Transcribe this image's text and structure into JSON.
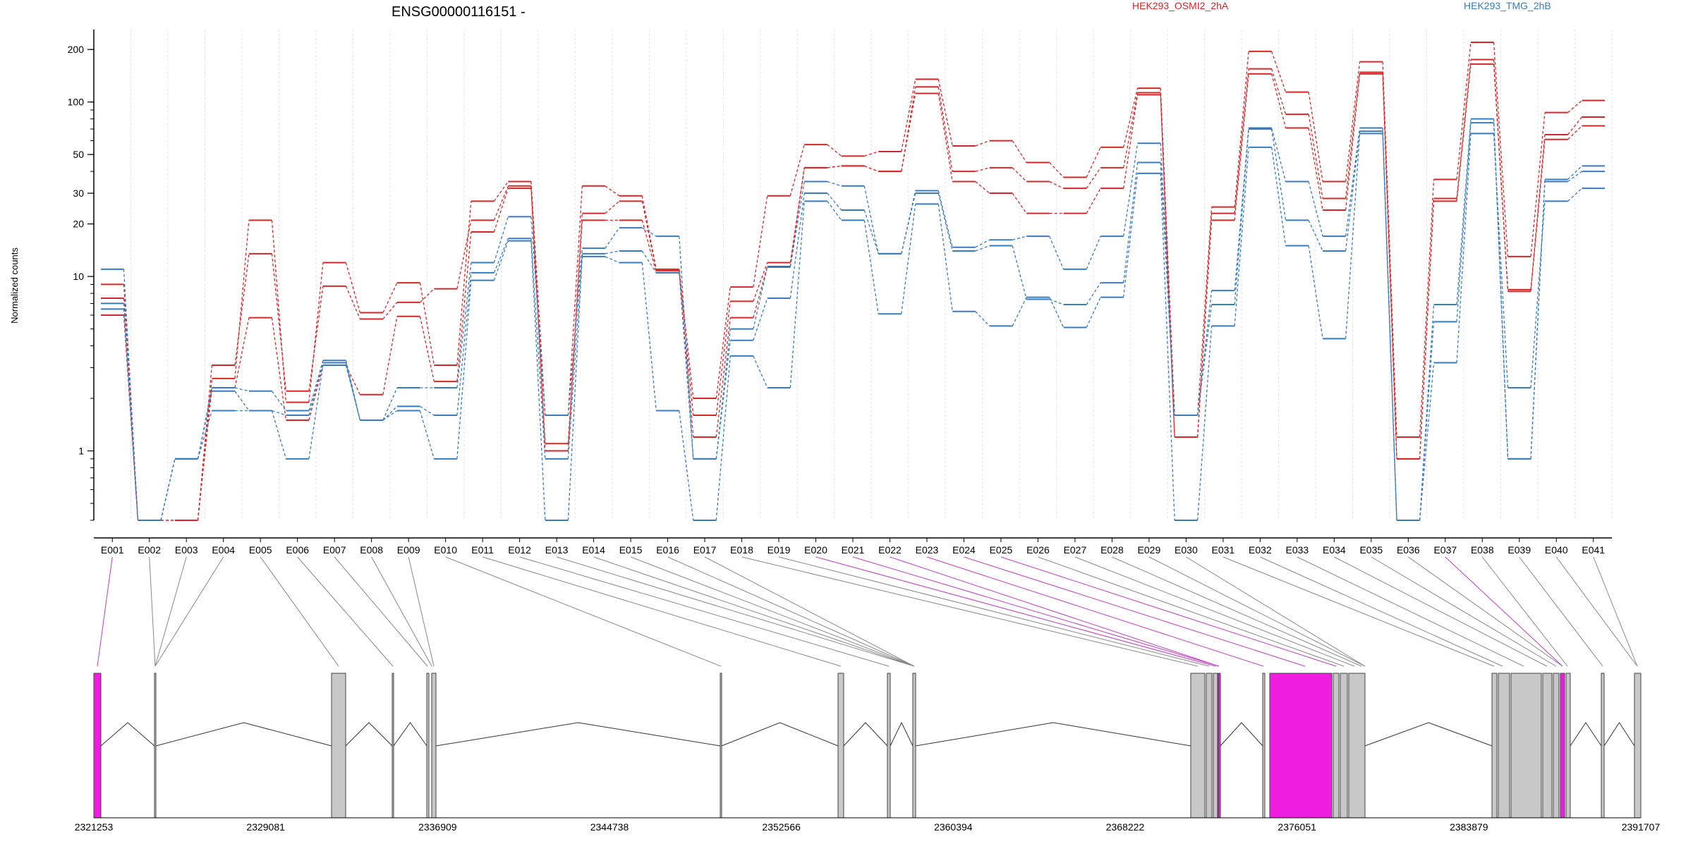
{
  "chart_data": {
    "type": "line",
    "title": "ENSG00000116151 -",
    "ylabel": "Normalized counts",
    "y_scale": "log",
    "ylim": [
      0.4,
      260
    ],
    "y_ticks": [
      1,
      10,
      20,
      30,
      50,
      100,
      200
    ],
    "grid": "vertical, light dashed",
    "legend": [
      {
        "name": "HEK293_OSMI2_2hA",
        "color": "#d62728"
      },
      {
        "name": "HEK293_TMG_2hB",
        "color": "#3a7bbf"
      }
    ],
    "categories": [
      "E001",
      "E002",
      "E003",
      "E004",
      "E005",
      "E006",
      "E007",
      "E008",
      "E009",
      "E010",
      "E011",
      "E012",
      "E013",
      "E014",
      "E015",
      "E016",
      "E017",
      "E018",
      "E019",
      "E020",
      "E021",
      "E022",
      "E023",
      "E024",
      "E025",
      "E026",
      "E027",
      "E028",
      "E029",
      "E030",
      "E031",
      "E032",
      "E033",
      "E034",
      "E035",
      "E036",
      "E037",
      "E038",
      "E039",
      "E040",
      "E041"
    ],
    "series": [
      {
        "name": "HEK293_OSMI2_2hA",
        "color": "#d62728",
        "values": [
          9,
          0.4,
          0.4,
          2.6,
          21,
          1.9,
          12,
          6.2,
          9.2,
          3.1,
          27,
          35,
          1.6,
          33,
          29,
          11,
          2,
          8.7,
          29,
          57,
          49,
          52,
          135,
          56,
          60,
          45,
          37,
          55,
          120,
          1.6,
          25,
          195,
          114,
          35,
          170,
          1.2,
          36,
          220,
          13,
          87,
          102
        ]
      },
      {
        "name": "HEK293_OSMI2_2hA",
        "color": "#d62728",
        "values": [
          7.5,
          0.4,
          0.4,
          3.1,
          13.5,
          2.2,
          8.8,
          5.7,
          7.1,
          8.5,
          21,
          33,
          1.1,
          23,
          27,
          10.8,
          1.6,
          7.2,
          12,
          42,
          43,
          40,
          122,
          40,
          42,
          35,
          32,
          42,
          113,
          1.2,
          23,
          155,
          85,
          28,
          148,
          0.9,
          28,
          175,
          8.4,
          65,
          82
        ]
      },
      {
        "name": "HEK293_OSMI2_2hA",
        "color": "#d62728",
        "values": [
          6,
          0.4,
          0.4,
          2.3,
          5.8,
          1.5,
          3.1,
          2.1,
          5.9,
          2.5,
          18,
          32,
          1,
          21,
          21,
          10.5,
          1.2,
          5.8,
          11.4,
          42,
          43,
          40,
          112,
          35,
          30,
          23,
          23,
          32,
          110,
          1.2,
          21,
          145,
          71,
          24,
          145,
          0.9,
          27,
          165,
          8.2,
          61,
          73
        ]
      },
      {
        "name": "HEK293_TMG_2hB",
        "color": "#3a7bbf",
        "values": [
          11,
          0.4,
          0.9,
          2.3,
          2.2,
          1.7,
          3.3,
          1.5,
          2.3,
          2.3,
          12,
          22,
          1.6,
          14.5,
          19,
          17,
          0.9,
          5,
          11.3,
          35,
          33,
          13.5,
          31,
          14.7,
          16.2,
          17,
          11,
          17,
          58,
          1.6,
          8.3,
          71,
          35,
          17,
          71,
          0.4,
          6.9,
          80,
          0.9,
          36,
          43
        ]
      },
      {
        "name": "HEK293_TMG_2hB",
        "color": "#3a7bbf",
        "values": [
          7,
          0.4,
          0.9,
          2.2,
          1.7,
          1.6,
          3.2,
          1.5,
          1.8,
          1.6,
          10.5,
          16.5,
          0.9,
          13.5,
          14,
          10.5,
          0.9,
          4.3,
          7.5,
          30,
          24,
          13.5,
          30,
          14,
          15,
          7.4,
          6.9,
          9.2,
          45,
          1.6,
          6.9,
          70,
          21,
          14,
          68,
          0.4,
          5.5,
          76,
          0.9,
          35,
          40
        ]
      },
      {
        "name": "HEK293_TMG_2hB",
        "color": "#3a7bbf",
        "values": [
          6.5,
          0.4,
          0.9,
          1.7,
          1.7,
          0.9,
          3.1,
          1.5,
          1.7,
          0.9,
          9.5,
          16,
          0.4,
          13,
          12,
          1.7,
          0.4,
          3.5,
          2.3,
          27,
          21,
          6.1,
          26,
          6.3,
          5.2,
          7.6,
          5.1,
          7.6,
          39,
          0.4,
          5.2,
          55,
          15,
          4.4,
          66,
          0.4,
          3.2,
          66,
          2.3,
          27,
          32
        ]
      }
    ]
  },
  "gene_model": {
    "coordinates": [
      "2321253",
      "2329081",
      "2336909",
      "2344738",
      "2352566",
      "2360394",
      "2368222",
      "2376051",
      "2383879",
      "2391707"
    ],
    "exon_fill": "#c8c8c8",
    "highlight_fill": "#f01de0"
  }
}
